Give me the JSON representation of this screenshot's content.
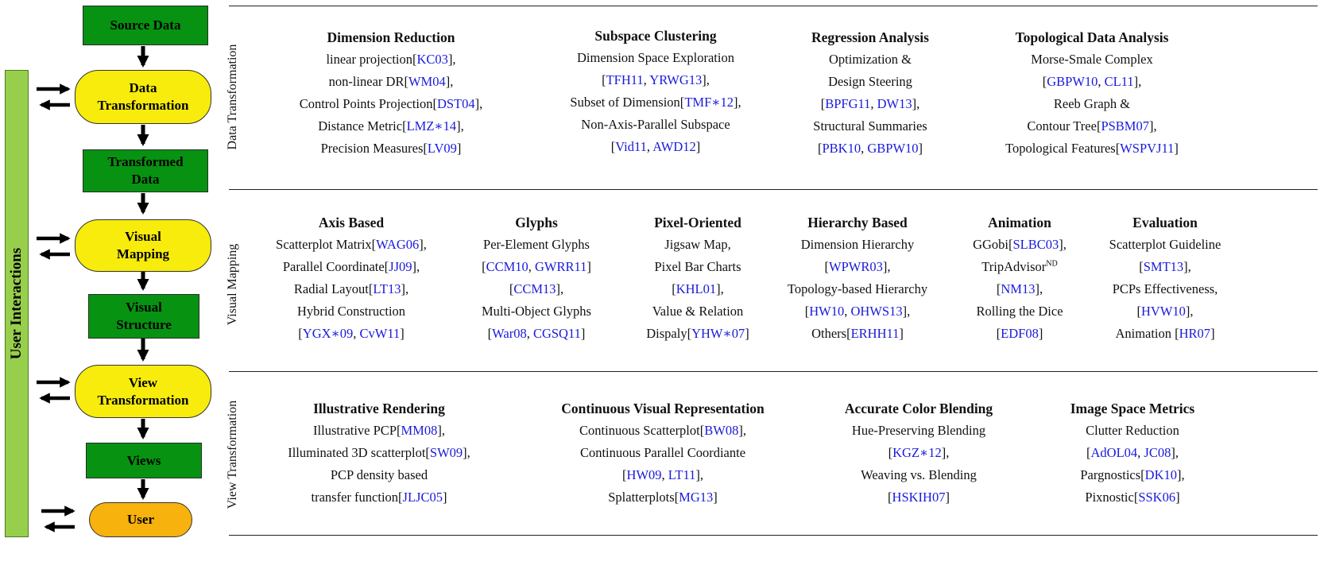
{
  "flow": {
    "source_data": "Source Data",
    "data_transformation": [
      "Data",
      "Transformation"
    ],
    "transformed_data": [
      "Transformed",
      "Data"
    ],
    "visual_mapping": [
      "Visual",
      "Mapping"
    ],
    "visual_structure": [
      "Visual",
      "Structure"
    ],
    "view_transformation": [
      "View",
      "Transformation"
    ],
    "views": "Views",
    "user": "User",
    "user_interactions": "User Interactions"
  },
  "colors": {
    "green": "#079211",
    "yellow": "#f7ec0c",
    "orange": "#f7b20d",
    "interaction_bar": "#97cf4d",
    "reference": "#1a1adb"
  },
  "sections": [
    {
      "label": "Data Transformation",
      "columns": [
        {
          "heading": "Dimension Reduction",
          "lines": [
            [
              [
                "linear projection[",
                0
              ],
              [
                "KC03",
                1
              ],
              [
                "],",
                0
              ]
            ],
            [
              [
                "non-linear DR[",
                0
              ],
              [
                "WM04",
                1
              ],
              [
                "],",
                0
              ]
            ],
            [
              [
                "Control Points Projection[",
                0
              ],
              [
                "DST04",
                1
              ],
              [
                "],",
                0
              ]
            ],
            [
              [
                "Distance Metric[",
                0
              ],
              [
                "LMZ∗14",
                1
              ],
              [
                "],",
                0
              ]
            ],
            [
              [
                "Precision Measures[",
                0
              ],
              [
                "LV09",
                1
              ],
              [
                "]",
                0
              ]
            ]
          ]
        },
        {
          "heading": "Subspace Clustering",
          "lines": [
            [
              [
                "Dimension Space Exploration",
                0
              ]
            ],
            [
              [
                "[",
                0
              ],
              [
                "TFH11",
                1
              ],
              [
                ", ",
                0
              ],
              [
                "YRWG13",
                1
              ],
              [
                "],",
                0
              ]
            ],
            [
              [
                "Subset of Dimension[",
                0
              ],
              [
                "TMF∗12",
                1
              ],
              [
                "],",
                0
              ]
            ],
            [
              [
                "Non-Axis-Parallel Subspace",
                0
              ]
            ],
            [
              [
                "[",
                0
              ],
              [
                "Vid11",
                1
              ],
              [
                ", ",
                0
              ],
              [
                "AWD12",
                1
              ],
              [
                "]",
                0
              ]
            ]
          ]
        },
        {
          "heading": "Regression Analysis",
          "lines": [
            [
              [
                "Optimization &",
                0
              ]
            ],
            [
              [
                "Design Steering",
                0
              ]
            ],
            [
              [
                "[",
                0
              ],
              [
                "BPFG11",
                1
              ],
              [
                ", ",
                0
              ],
              [
                "DW13",
                1
              ],
              [
                "],",
                0
              ]
            ],
            [
              [
                "Structural Summaries",
                0
              ]
            ],
            [
              [
                "[",
                0
              ],
              [
                "PBK10",
                1
              ],
              [
                ", ",
                0
              ],
              [
                "GBPW10",
                1
              ],
              [
                "]",
                0
              ]
            ]
          ]
        },
        {
          "heading": "Topological Data Analysis",
          "lines": [
            [
              [
                "Morse-Smale Complex",
                0
              ]
            ],
            [
              [
                "[",
                0
              ],
              [
                "GBPW10",
                1
              ],
              [
                ", ",
                0
              ],
              [
                "CL11",
                1
              ],
              [
                "],",
                0
              ]
            ],
            [
              [
                "Reeb Graph &",
                0
              ]
            ],
            [
              [
                "Contour Tree[",
                0
              ],
              [
                "PSBM07",
                1
              ],
              [
                "],",
                0
              ]
            ],
            [
              [
                "Topological Features[",
                0
              ],
              [
                "WSPVJ11",
                1
              ],
              [
                "]",
                0
              ]
            ]
          ]
        }
      ]
    },
    {
      "label": "Visual Mapping",
      "columns": [
        {
          "heading": "Axis Based",
          "lines": [
            [
              [
                "Scatterplot Matrix[",
                0
              ],
              [
                "WAG06",
                1
              ],
              [
                "],",
                0
              ]
            ],
            [
              [
                "Parallel Coordinate[",
                0
              ],
              [
                "JJ09",
                1
              ],
              [
                "],",
                0
              ]
            ],
            [
              [
                "Radial Layout[",
                0
              ],
              [
                "LT13",
                1
              ],
              [
                "],",
                0
              ]
            ],
            [
              [
                "Hybrid Construction",
                0
              ]
            ],
            [
              [
                "[",
                0
              ],
              [
                "YGX∗09",
                1
              ],
              [
                ", ",
                0
              ],
              [
                "CvW11",
                1
              ],
              [
                "]",
                0
              ]
            ]
          ]
        },
        {
          "heading": "Glyphs",
          "lines": [
            [
              [
                "Per-Element Glyphs",
                0
              ]
            ],
            [
              [
                "[",
                0
              ],
              [
                "CCM10",
                1
              ],
              [
                ", ",
                0
              ],
              [
                "GWRR11",
                1
              ],
              [
                "]",
                0
              ]
            ],
            [
              [
                "[",
                0
              ],
              [
                "CCM13",
                1
              ],
              [
                "],",
                0
              ]
            ],
            [
              [
                "Multi-Object Glyphs",
                0
              ]
            ],
            [
              [
                "[",
                0
              ],
              [
                "War08",
                1
              ],
              [
                ", ",
                0
              ],
              [
                "CGSQ11",
                1
              ],
              [
                "]",
                0
              ]
            ]
          ]
        },
        {
          "heading": "Pixel-Oriented",
          "lines": [
            [
              [
                "Jigsaw Map,",
                0
              ]
            ],
            [
              [
                "Pixel Bar Charts",
                0
              ]
            ],
            [
              [
                "[",
                0
              ],
              [
                "KHL01",
                1
              ],
              [
                "],",
                0
              ]
            ],
            [
              [
                "Value & Relation",
                0
              ]
            ],
            [
              [
                "Dispaly[",
                0
              ],
              [
                "YHW∗07",
                1
              ],
              [
                "]",
                0
              ]
            ]
          ]
        },
        {
          "heading": "Hierarchy Based",
          "lines": [
            [
              [
                "Dimension Hierarchy",
                0
              ]
            ],
            [
              [
                "[",
                0
              ],
              [
                "WPWR03",
                1
              ],
              [
                "],",
                0
              ]
            ],
            [
              [
                "Topology-based Hierarchy",
                0
              ]
            ],
            [
              [
                "[",
                0
              ],
              [
                "HW10",
                1
              ],
              [
                ", ",
                0
              ],
              [
                "OHWS13",
                1
              ],
              [
                "],",
                0
              ]
            ],
            [
              [
                "Others[",
                0
              ],
              [
                "ERHH11",
                1
              ],
              [
                "]",
                0
              ]
            ]
          ]
        },
        {
          "heading": "Animation",
          "lines": [
            [
              [
                "GGobi[",
                0
              ],
              [
                "SLBC03",
                1
              ],
              [
                "],",
                0
              ]
            ],
            [
              [
                "TripAdvisor",
                0
              ],
              [
                "ND",
                2
              ]
            ],
            [
              [
                "[",
                0
              ],
              [
                "NM13",
                1
              ],
              [
                "],",
                0
              ]
            ],
            [
              [
                "Rolling the Dice",
                0
              ]
            ],
            [
              [
                "[",
                0
              ],
              [
                "EDF08",
                1
              ],
              [
                "]",
                0
              ]
            ]
          ]
        },
        {
          "heading": "Evaluation",
          "lines": [
            [
              [
                "Scatterplot Guideline",
                0
              ]
            ],
            [
              [
                "[",
                0
              ],
              [
                "SMT13",
                1
              ],
              [
                "],",
                0
              ]
            ],
            [
              [
                "PCPs Effectiveness,",
                0
              ]
            ],
            [
              [
                "[",
                0
              ],
              [
                "HVW10",
                1
              ],
              [
                "],",
                0
              ]
            ],
            [
              [
                "Animation [",
                0
              ],
              [
                "HR07",
                1
              ],
              [
                "]",
                0
              ]
            ]
          ]
        }
      ]
    },
    {
      "label": "View Transformation",
      "columns": [
        {
          "heading": "Illustrative Rendering",
          "lines": [
            [
              [
                "Illustrative PCP[",
                0
              ],
              [
                "MM08",
                1
              ],
              [
                "],",
                0
              ]
            ],
            [
              [
                "Illuminated 3D scatterplot[",
                0
              ],
              [
                "SW09",
                1
              ],
              [
                "],",
                0
              ]
            ],
            [
              [
                "PCP density based",
                0
              ]
            ],
            [
              [
                "transfer function[",
                0
              ],
              [
                "JLJC05",
                1
              ],
              [
                "]",
                0
              ]
            ]
          ]
        },
        {
          "heading": "Continuous Visual Representation",
          "lines": [
            [
              [
                "Continuous Scatterplot[",
                0
              ],
              [
                "BW08",
                1
              ],
              [
                "],",
                0
              ]
            ],
            [
              [
                "Continuous Parallel Coordiante",
                0
              ]
            ],
            [
              [
                "[",
                0
              ],
              [
                "HW09",
                1
              ],
              [
                ", ",
                0
              ],
              [
                "LT11",
                1
              ],
              [
                "],",
                0
              ]
            ],
            [
              [
                "Splatterplots[",
                0
              ],
              [
                "MG13",
                1
              ],
              [
                "]",
                0
              ]
            ]
          ]
        },
        {
          "heading": "Accurate Color Blending",
          "lines": [
            [
              [
                "Hue-Preserving Blending",
                0
              ]
            ],
            [
              [
                "[",
                0
              ],
              [
                "KGZ∗12",
                1
              ],
              [
                "],",
                0
              ]
            ],
            [
              [
                "Weaving vs. Blending",
                0
              ]
            ],
            [
              [
                "[",
                0
              ],
              [
                "HSKIH07",
                1
              ],
              [
                "]",
                0
              ]
            ]
          ]
        },
        {
          "heading": "Image Space Metrics",
          "lines": [
            [
              [
                "Clutter Reduction",
                0
              ]
            ],
            [
              [
                "[",
                0
              ],
              [
                "AdOL04",
                1
              ],
              [
                ", ",
                0
              ],
              [
                "JC08",
                1
              ],
              [
                "],",
                0
              ]
            ],
            [
              [
                "Pargnostics[",
                0
              ],
              [
                "DK10",
                1
              ],
              [
                "],",
                0
              ]
            ],
            [
              [
                "Pixnostic[",
                0
              ],
              [
                "SSK06",
                1
              ],
              [
                "]",
                0
              ]
            ]
          ]
        }
      ]
    }
  ]
}
